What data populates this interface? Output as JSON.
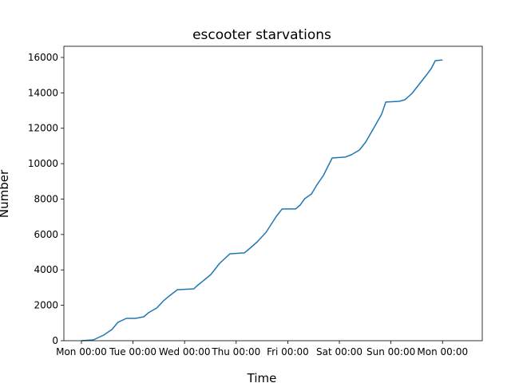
{
  "chart_data": {
    "type": "line",
    "title": "escooter starvations",
    "x_label": "Time",
    "y_label": "Number",
    "x": [
      0,
      0.23,
      0.43,
      0.59,
      0.71,
      0.87,
      1.05,
      1.21,
      1.3,
      1.46,
      1.59,
      1.7,
      1.86,
      2.18,
      2.26,
      2.38,
      2.51,
      2.68,
      2.88,
      3.16,
      3.27,
      3.41,
      3.58,
      3.78,
      3.89,
      4.15,
      4.24,
      4.33,
      4.46,
      4.55,
      4.69,
      4.86,
      5.11,
      5.23,
      5.39,
      5.51,
      5.67,
      5.82,
      5.9,
      6.16,
      6.27,
      6.41,
      6.53,
      6.69,
      6.78,
      6.86,
      7.0
    ],
    "values": [
      0,
      45,
      315,
      630,
      1040,
      1260,
      1260,
      1350,
      1580,
      1850,
      2250,
      2520,
      2880,
      2930,
      3150,
      3425,
      3740,
      4370,
      4910,
      4960,
      5230,
      5590,
      6130,
      7030,
      7440,
      7440,
      7660,
      8020,
      8290,
      8740,
      9330,
      10320,
      10370,
      10500,
      10770,
      11220,
      12030,
      12800,
      13480,
      13520,
      13610,
      13970,
      14420,
      15010,
      15370,
      15820,
      15860
    ],
    "color": "#1f77b4",
    "xlim": [
      -0.34,
      7.77
    ],
    "xticks": [
      {
        "value": 0,
        "label": "Mon 00:00"
      },
      {
        "value": 1,
        "label": "Tue 00:00"
      },
      {
        "value": 2,
        "label": "Wed 00:00"
      },
      {
        "value": 3,
        "label": "Thu 00:00"
      },
      {
        "value": 4,
        "label": "Fri 00:00"
      },
      {
        "value": 5,
        "label": "Sat 00:00"
      },
      {
        "value": 6,
        "label": "Sun 00:00"
      },
      {
        "value": 7,
        "label": "Mon 00:00"
      }
    ],
    "ylim": [
      0,
      16630
    ],
    "yticks": [
      0,
      2000,
      4000,
      6000,
      8000,
      10000,
      12000,
      14000,
      16000
    ]
  }
}
